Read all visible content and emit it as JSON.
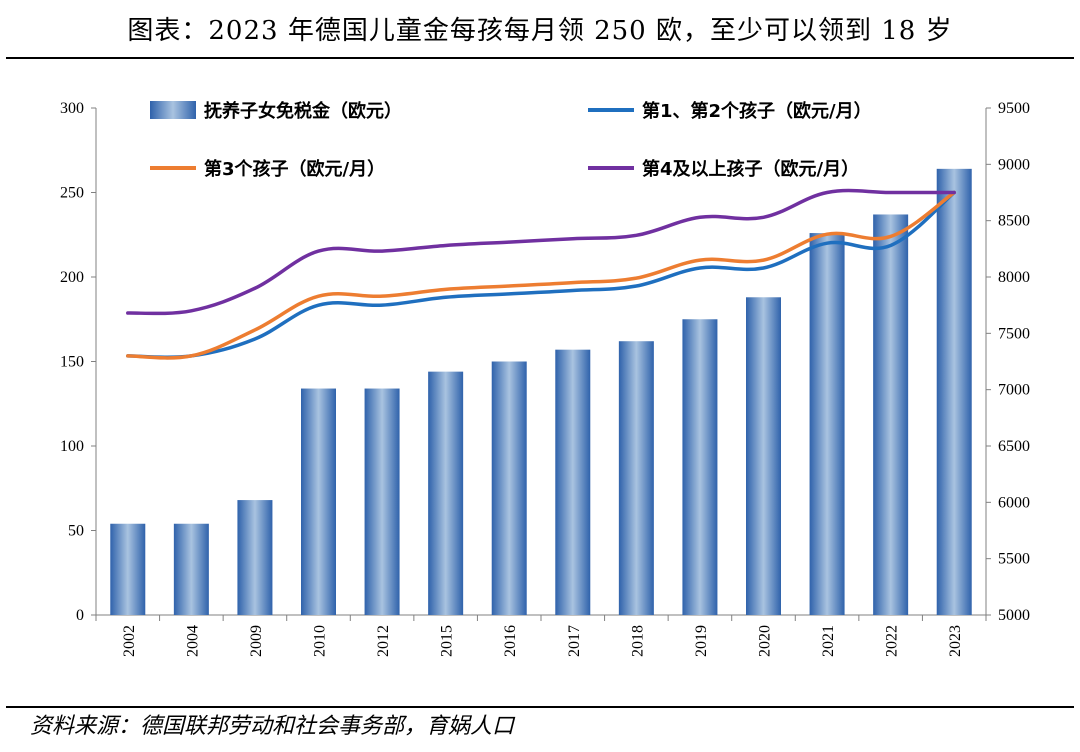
{
  "header": {
    "title": "图表：2023 年德国儿童金每孩每月领 250 欧，至少可以领到 18 岁"
  },
  "footer": {
    "source": "资料来源：德国联邦劳动和社会事务部，育娲人口"
  },
  "colors": {
    "bar": "#3d72b8",
    "series1": "#1f6fbf",
    "series2": "#ed7d31",
    "series3": "#7030a0",
    "axis": "#808080"
  },
  "chart_data": {
    "type": "bar",
    "categories": [
      "2002",
      "2004",
      "2009",
      "2010",
      "2012",
      "2015",
      "2016",
      "2017",
      "2018",
      "2019",
      "2020",
      "2021",
      "2022",
      "2023"
    ],
    "left_axis": {
      "min": 0,
      "max": 300,
      "ticks": [
        "0",
        "50",
        "100",
        "150",
        "200",
        "250",
        "300"
      ]
    },
    "right_axis": {
      "min": 5000,
      "max": 9500,
      "ticks": [
        "5000",
        "5500",
        "6000",
        "6500",
        "7000",
        "7500",
        "8000",
        "8500",
        "9000",
        "9500"
      ]
    },
    "bar_series": {
      "name": "抚养子女免税金（欧元）",
      "axis": "left",
      "values": [
        54,
        54,
        68,
        134,
        134,
        144,
        150,
        157,
        162,
        175,
        188,
        226,
        237,
        264
      ]
    },
    "line_series": [
      {
        "name": "第1、第2个孩子（欧元/月）",
        "axis": "right",
        "values": [
          7300,
          7300,
          7450,
          7750,
          7750,
          7820,
          7850,
          7880,
          7920,
          8080,
          8080,
          8300,
          8280,
          8750
        ]
      },
      {
        "name": "第3个孩子（欧元/月）",
        "axis": "right",
        "values": [
          7300,
          7300,
          7530,
          7830,
          7830,
          7890,
          7920,
          7950,
          7990,
          8150,
          8150,
          8380,
          8360,
          8750
        ]
      },
      {
        "name": "第4及以上孩子（欧元/月）",
        "axis": "right",
        "values": [
          7680,
          7700,
          7900,
          8230,
          8230,
          8280,
          8310,
          8340,
          8370,
          8530,
          8530,
          8750,
          8750,
          8750
        ]
      }
    ],
    "legend": [
      "抚养子女免税金（欧元）",
      "第1、第2个孩子（欧元/月）",
      "第3个孩子（欧元/月）",
      "第4及以上孩子（欧元/月）"
    ]
  }
}
